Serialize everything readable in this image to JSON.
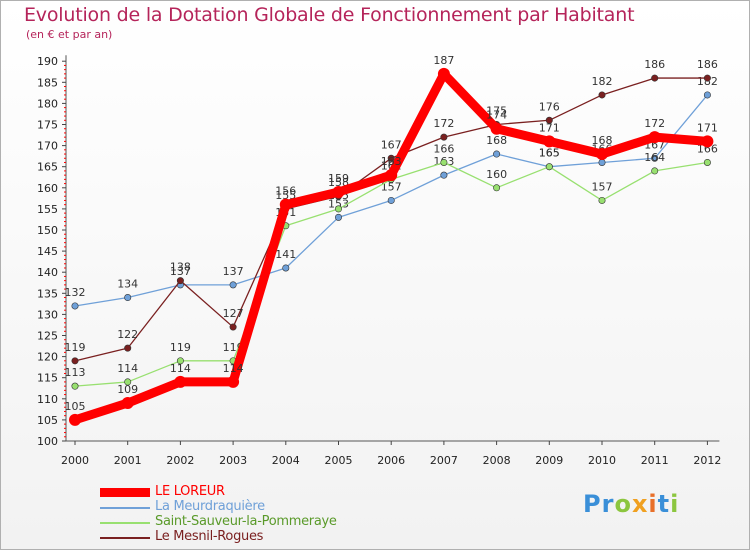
{
  "title": "Evolution de la Dotation Globale de Fonctionnement par Habitant",
  "subtitle": "(en € et par an)",
  "logo": {
    "text": "Proxiti",
    "letters": [
      {
        "ch": "P",
        "color": "#3a8fd8"
      },
      {
        "ch": "r",
        "color": "#3a8fd8"
      },
      {
        "ch": "o",
        "color": "#8cc63f"
      },
      {
        "ch": "x",
        "color": "#f0a020"
      },
      {
        "ch": "i",
        "color": "#e8702a"
      },
      {
        "ch": "t",
        "color": "#3a8fd8"
      },
      {
        "ch": "i",
        "color": "#8cc63f"
      }
    ]
  },
  "chart_data": {
    "type": "line",
    "title": "Evolution de la Dotation Globale de Fonctionnement par Habitant",
    "ylabel": "(en € et par an)",
    "xlabel": "",
    "ylim": [
      100,
      190
    ],
    "yticks": [
      100,
      105,
      110,
      115,
      120,
      125,
      130,
      135,
      140,
      145,
      150,
      155,
      160,
      165,
      170,
      175,
      180,
      185,
      190
    ],
    "categories": [
      "2000",
      "2001",
      "2002",
      "2003",
      "2004",
      "2005",
      "2006",
      "2007",
      "2008",
      "2009",
      "2010",
      "2011",
      "2012"
    ],
    "grid": false,
    "legend_position": "bottom-left",
    "series": [
      {
        "name": "La Meurdraquière",
        "color": "#6fa0d8",
        "values": [
          132,
          134,
          137,
          137,
          141,
          153,
          157,
          163,
          168,
          165,
          166,
          167,
          182
        ]
      },
      {
        "name": "Saint-Sauveur-la-Pommeraye",
        "color": "#98e070",
        "values": [
          113,
          114,
          119,
          119,
          151,
          155,
          162,
          166,
          160,
          165,
          157,
          164,
          166
        ]
      },
      {
        "name": "Le Mesnil-Rogues",
        "color": "#7a2020",
        "values": [
          119,
          122,
          138,
          127,
          155,
          158,
          167,
          172,
          175,
          176,
          182,
          186,
          186
        ]
      },
      {
        "name": "LE LOREUR",
        "color": "#ff0000",
        "values": [
          105,
          109,
          114,
          114,
          156,
          159,
          163,
          187,
          174,
          171,
          168,
          172,
          171
        ]
      }
    ],
    "legend": [
      "LE LOREUR",
      "La Meurdraquière",
      "Saint-Sauveur-la-Pommeraye",
      "Le Mesnil-Rogues"
    ]
  }
}
